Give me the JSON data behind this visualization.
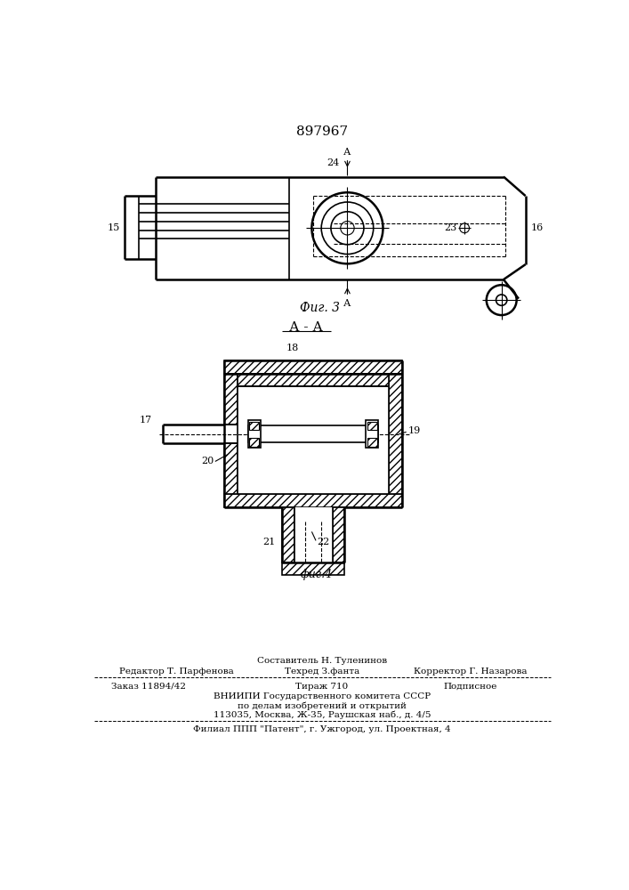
{
  "patent_number": "897967",
  "fig3_label": "Фиг. 3",
  "fig4_label": "фиг.4",
  "section_label": "А - А",
  "footer_line1": "Составитель Н. Туленинов",
  "footer_line2_left": "Редактор Т. Парфенова",
  "footer_line2_mid": "Техред З.фанта",
  "footer_line2_right": "Корректор Г. Назарова",
  "footer_line3_left": "Заказ 11894/42",
  "footer_line3_mid": "Тираж 710",
  "footer_line3_right": "Подписное",
  "footer_line4": "ВНИИПИ Государственного комитета СССР",
  "footer_line5": "по делам изобретений и открытий",
  "footer_line6": "113035, Москва, Ж-35, Раушская наб., д. 4/5",
  "footer_line7": "Филиал ППП \"Патент\", г. Ужгород, ул. Проектная, 4",
  "bg_color": "#ffffff",
  "line_color": "#000000"
}
